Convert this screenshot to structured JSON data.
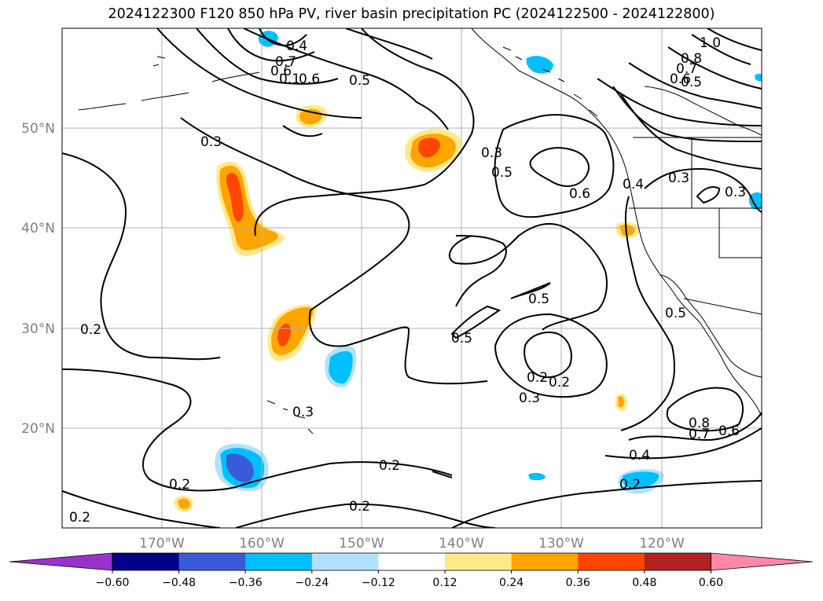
{
  "title": "2024122300 F120 850 hPa PV, river basin precipitation PC (2024122500 - 2024122800)",
  "map": {
    "lon_ticks": [
      "170°W",
      "160°W",
      "150°W",
      "140°W",
      "130°W",
      "120°W"
    ],
    "lat_ticks": [
      "50°N",
      "40°N",
      "30°N",
      "20°N"
    ],
    "grid": true,
    "contour_labels": [
      "1.0",
      "0.8",
      "0.7",
      "0.6",
      "0.5",
      "0.3",
      "0.4",
      "0.7",
      "0.6",
      "0.1",
      "0.6",
      "0.5",
      "0.3",
      "0.6",
      "0.5",
      "0.4",
      "0.3",
      "0.3",
      "0.5",
      "0.5",
      "0.5",
      "0.2",
      "0.3",
      "0.3",
      "0.2",
      "0.8",
      "0.7",
      "0.6",
      "0.4",
      "0.2",
      "0.2",
      "0.2",
      "0.2",
      "0.2",
      "0.2"
    ]
  },
  "colorbar": {
    "ticks": [
      "−0.60",
      "−0.48",
      "−0.36",
      "−0.24",
      "−0.12",
      "0.12",
      "0.24",
      "0.36",
      "0.48",
      "0.60"
    ],
    "colors": [
      "#9932cc",
      "#00008b",
      "#3a5bd9",
      "#00bfff",
      "#b0e2ff",
      "#ffffff",
      "#ffe98a",
      "#ffa500",
      "#ff4500",
      "#b22222",
      "#ff88aa"
    ]
  }
}
